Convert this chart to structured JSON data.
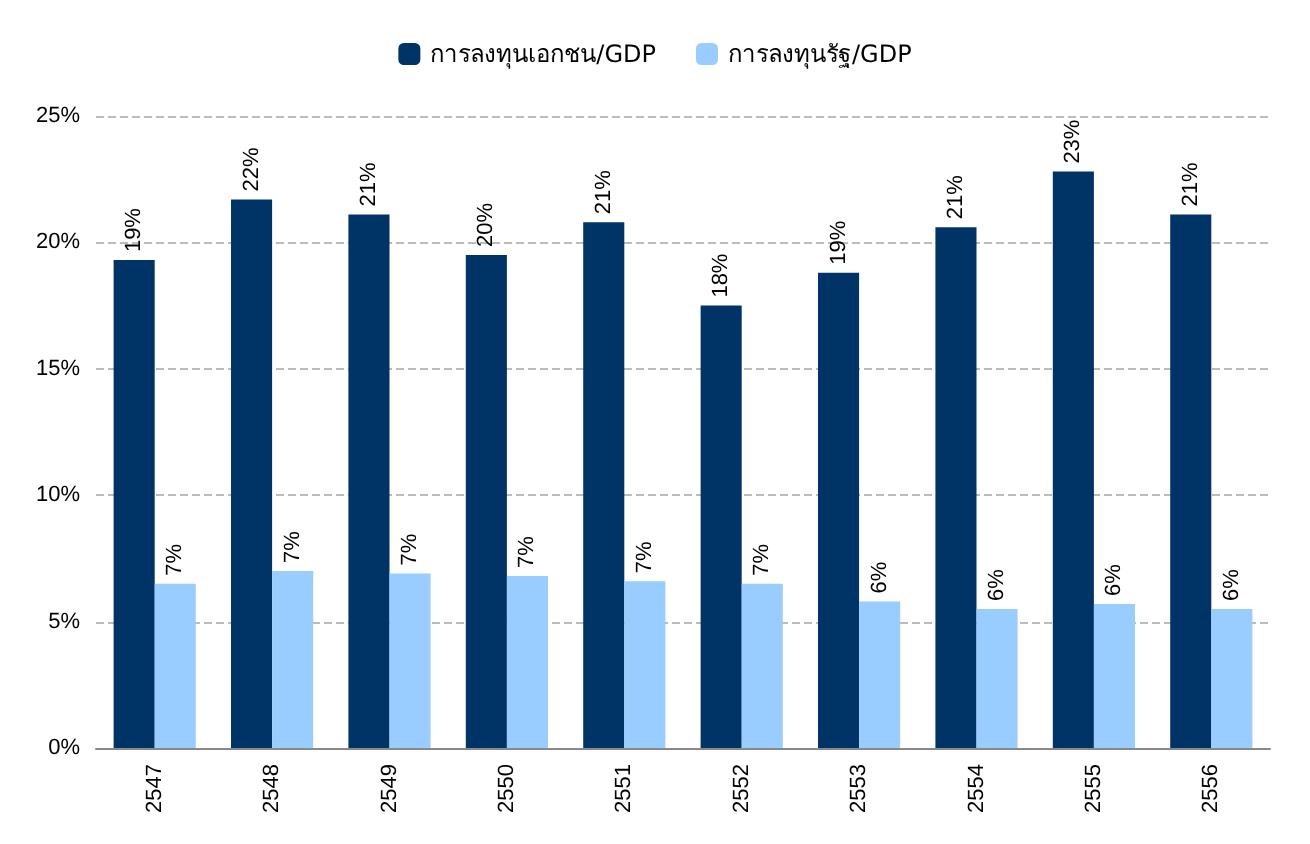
{
  "chart_data": {
    "type": "bar",
    "categories": [
      "2547",
      "2548",
      "2549",
      "2550",
      "2551",
      "2552",
      "2553",
      "2554",
      "2555",
      "2556"
    ],
    "series": [
      {
        "name": "การลงทุนเอกชน/GDP",
        "color": "#003366",
        "values": [
          19.3,
          21.7,
          21.1,
          19.5,
          20.8,
          17.5,
          18.8,
          20.6,
          22.8,
          21.1
        ],
        "value_labels": [
          "19%",
          "22%",
          "21%",
          "20%",
          "21%",
          "18%",
          "19%",
          "21%",
          "23%",
          "21%"
        ]
      },
      {
        "name": "การลงทุนรัฐ/GDP",
        "color": "#99ccff",
        "values": [
          6.5,
          7.0,
          6.9,
          6.8,
          6.6,
          6.5,
          5.8,
          5.5,
          5.7,
          5.5
        ],
        "value_labels": [
          "7%",
          "7%",
          "7%",
          "7%",
          "7%",
          "7%",
          "6%",
          "6%",
          "6%",
          "6%"
        ]
      }
    ],
    "ylim": [
      0,
      25
    ],
    "yticks": [
      {
        "value": 0,
        "label": "0%"
      },
      {
        "value": 5,
        "label": "5%"
      },
      {
        "value": 10,
        "label": "10%"
      },
      {
        "value": 15,
        "label": "15%"
      },
      {
        "value": 20,
        "label": "20%"
      },
      {
        "value": 25,
        "label": "25%"
      }
    ],
    "grid": "y",
    "legend": "top"
  }
}
